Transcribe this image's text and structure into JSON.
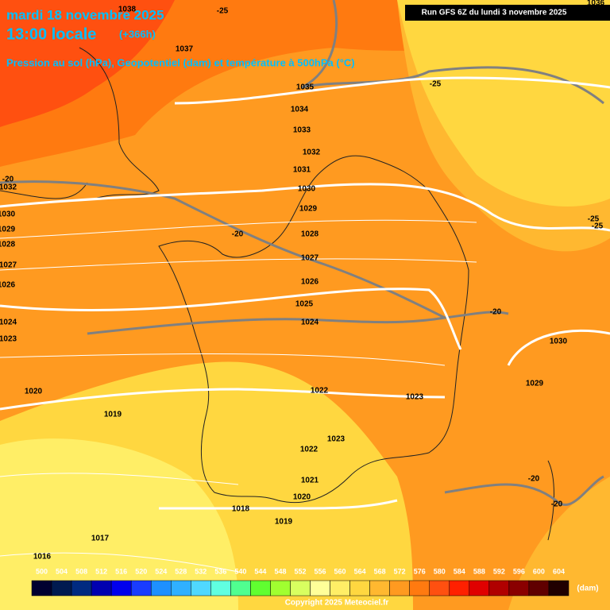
{
  "header": {
    "date": "mardi 18 novembre 2025",
    "time": "13:00 locale",
    "lead": "(+366h)",
    "subtitle": "Pression au sol (hPa), Geopotentiel (dam) et température à 500hPa (°C)",
    "run": "Run GFS 6Z du lundi 3 novembre 2025"
  },
  "isobar_labels": [
    1038,
    1037,
    1035,
    1034,
    1033,
    1032,
    1031,
    1030,
    1029,
    1028,
    1027,
    1026,
    1025,
    1024,
    1022,
    1023,
    1023,
    1022,
    1021,
    1020,
    1019,
    1018,
    1017,
    1016,
    1020,
    1019,
    1032,
    1030,
    1029,
    1028,
    1027,
    1026,
    1024,
    1023,
    1030,
    1029,
    1036
  ],
  "temperature_labels": [
    -25,
    -25,
    -20,
    -20,
    -25,
    -25,
    -20,
    -20,
    -20
  ],
  "colorbar": {
    "ticks": [
      500,
      504,
      508,
      512,
      516,
      520,
      524,
      528,
      532,
      536,
      540,
      544,
      548,
      552,
      556,
      560,
      564,
      568,
      572,
      576,
      580,
      584,
      588,
      592,
      596,
      600,
      604
    ],
    "colors": [
      "#000030",
      "#001a50",
      "#002a80",
      "#0000b0",
      "#0000ee",
      "#1a3cff",
      "#1e90ff",
      "#30b0ff",
      "#50d8ff",
      "#60ffe0",
      "#50ff90",
      "#60ff30",
      "#a0ff30",
      "#d8ff60",
      "#ffff99",
      "#ffee66",
      "#ffd740",
      "#ffb830",
      "#ff9a20",
      "#ff7a10",
      "#ff5010",
      "#ff2000",
      "#e00000",
      "#b00000",
      "#8a0000",
      "#600000",
      "#200000"
    ],
    "unit": "(dam)"
  },
  "copyright": "Copyright 2025 Meteociel.fr"
}
